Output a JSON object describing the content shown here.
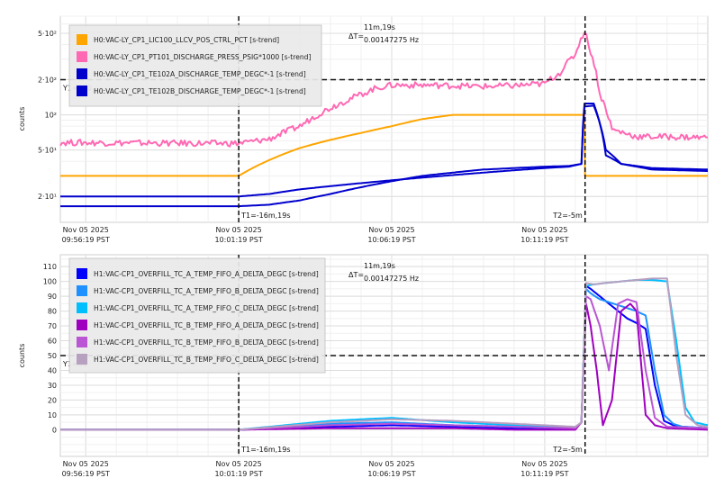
{
  "chart_data": [
    {
      "type": "line",
      "ylabel": "counts",
      "yscale": "log",
      "ylim": [
        12,
        700
      ],
      "yticks": [
        {
          "value": 20,
          "label": "2·10¹"
        },
        {
          "value": 50,
          "label": "5·10¹"
        },
        {
          "value": 100,
          "label": "10²"
        },
        {
          "value": 200,
          "label": "2·10²"
        },
        {
          "value": 500,
          "label": "5·10²"
        }
      ],
      "xticks": [
        {
          "minutes": 0,
          "line1": "Nov 05 2025",
          "line2": "09:56:19 PST"
        },
        {
          "minutes": 5,
          "line1": "Nov 05 2025",
          "line2": "10:01:19 PST"
        },
        {
          "minutes": 10,
          "line1": "Nov 05 2025",
          "line2": "10:06:19 PST"
        },
        {
          "minutes": 15,
          "line1": "Nov 05 2025",
          "line2": "10:11:19 PST"
        }
      ],
      "xrange_minutes": [
        -0.83,
        20.33
      ],
      "grid": true,
      "legend_position": "top-left",
      "cursors": {
        "t1_minutes": 5,
        "t1_label": "T1=-16m,19s",
        "t2_minutes": 16.32,
        "t2_label": "T2=-5m",
        "dt_label": "ΔT=",
        "dt_value": "11m,19s",
        "dt_freq": "0.00147275 Hz",
        "y1_value": 200,
        "y1_label": "Y1=200"
      },
      "series": [
        {
          "name": "H0:VAC-LY_CP1_LIC100_LLCV_POS_CTRL_PCT [s-trend]",
          "color": "#ffa500",
          "x": [
            -0.83,
            5,
            6,
            7,
            8,
            9,
            10,
            11,
            12,
            13,
            14,
            15,
            16.3,
            16.32,
            18,
            20.33
          ],
          "y": [
            30,
            30,
            41,
            52,
            61,
            70,
            80,
            92,
            100,
            100,
            100,
            100,
            100,
            30,
            30,
            30
          ]
        },
        {
          "name": "H0:VAC-LY_CP1_PT101_DISCHARGE_PRESS_PSIG*1000 [s-trend]",
          "color": "#ff69b4",
          "x": [
            -0.83,
            4,
            5,
            6,
            7,
            8,
            9,
            9.5,
            10,
            11,
            12,
            13,
            14,
            15,
            15.5,
            16,
            16.3,
            16.5,
            16.8,
            17.2,
            18,
            19,
            20.33
          ],
          "y": [
            58,
            57,
            57,
            62,
            80,
            115,
            150,
            170,
            180,
            180,
            178,
            175,
            178,
            185,
            230,
            330,
            520,
            350,
            150,
            75,
            65,
            65,
            64
          ]
        },
        {
          "name": "H0:VAC-LY_CP1_TE102A_DISCHARGE_TEMP_DEGC*-1 [s-trend]",
          "color": "#0000cd",
          "x": [
            -0.83,
            5,
            6,
            7,
            8,
            9,
            10,
            11,
            12,
            13,
            14,
            15,
            15.8,
            16.2,
            16.3,
            16.32,
            16.6,
            17,
            17.5,
            18.5,
            20.33
          ],
          "y": [
            20,
            20,
            21,
            23,
            24.5,
            26,
            27.5,
            29,
            30.5,
            32,
            33.5,
            35,
            36,
            38,
            125,
            125,
            125,
            45,
            38,
            34,
            33
          ]
        },
        {
          "name": "H0:VAC-LY_CP1_TE102B_DISCHARGE_TEMP_DEGC*-1 [s-trend]",
          "color": "#0000cd",
          "x": [
            -0.83,
            5,
            6,
            7,
            8,
            9,
            10,
            11,
            12,
            13,
            14,
            15,
            15.8,
            16.2,
            16.3,
            16.32,
            16.6,
            17,
            17.5,
            18.5,
            20.33
          ],
          "y": [
            16.5,
            16.5,
            17,
            18.5,
            21,
            24,
            27,
            30,
            32,
            34,
            35,
            36,
            36.5,
            38,
            118,
            118,
            120,
            50,
            38,
            35,
            34
          ]
        }
      ]
    },
    {
      "type": "line",
      "ylabel": "counts",
      "ylim": [
        -18,
        118
      ],
      "yticks": [
        0,
        10,
        20,
        30,
        40,
        50,
        60,
        70,
        80,
        90,
        100,
        110
      ],
      "xticks": [
        {
          "minutes": 0,
          "line1": "Nov 05 2025",
          "line2": "09:56:19 PST"
        },
        {
          "minutes": 5,
          "line1": "Nov 05 2025",
          "line2": "10:01:19 PST"
        },
        {
          "minutes": 10,
          "line1": "Nov 05 2025",
          "line2": "10:06:19 PST"
        },
        {
          "minutes": 15,
          "line1": "Nov 05 2025",
          "line2": "10:11:19 PST"
        }
      ],
      "xrange_minutes": [
        -0.83,
        20.33
      ],
      "grid": true,
      "legend_position": "top-left",
      "cursors": {
        "t1_minutes": 5,
        "t1_label": "T1=-16m,19s",
        "t2_minutes": 16.32,
        "t2_label": "T2=-5m",
        "dt_label": "ΔT=",
        "dt_value": "11m,19s",
        "dt_freq": "0.00147275 Hz",
        "y1_value": 50,
        "y1_label": "Y1=50"
      },
      "series": [
        {
          "name": "H1:VAC-CP1_OVERFILL_TC_A_TEMP_FIFO_A_DELTA_DEGC [s-trend]",
          "color": "#0000ff",
          "x": [
            -0.83,
            5,
            8,
            10,
            12,
            14,
            16,
            16.2,
            16.35,
            16.5,
            16.8,
            17.1,
            17.4,
            17.7,
            18,
            18.3,
            18.6,
            18.9,
            19.2,
            19.5,
            20.33
          ],
          "y": [
            0,
            0,
            2,
            3,
            2,
            1,
            1,
            5,
            97,
            95,
            90,
            85,
            80,
            75,
            72,
            68,
            30,
            6,
            3,
            2,
            1
          ]
        },
        {
          "name": "H1:VAC-CP1_OVERFILL_TC_A_TEMP_FIFO_B_DELTA_DEGC [s-trend]",
          "color": "#1e90ff",
          "x": [
            -0.83,
            5,
            8,
            10,
            12,
            14,
            16,
            16.2,
            16.35,
            16.5,
            16.8,
            17.1,
            17.4,
            17.7,
            18,
            18.3,
            18.6,
            18.9,
            19.2,
            19.5,
            20.33
          ],
          "y": [
            0,
            0,
            4,
            5,
            3,
            2,
            1,
            5,
            95,
            92,
            88,
            86,
            84,
            82,
            80,
            77,
            40,
            10,
            4,
            2,
            1
          ]
        },
        {
          "name": "H1:VAC-CP1_OVERFILL_TC_A_TEMP_FIFO_C_DELTA_DEGC [s-trend]",
          "color": "#00bfff",
          "x": [
            -0.83,
            5,
            8,
            10,
            12,
            14,
            16,
            16.2,
            16.35,
            16.6,
            17,
            17.5,
            18,
            18.5,
            19,
            19.3,
            19.6,
            19.9,
            20.33
          ],
          "y": [
            0,
            0,
            6,
            8,
            5,
            3,
            1,
            5,
            97,
            98,
            99,
            100,
            101,
            101,
            100,
            60,
            15,
            5,
            3
          ]
        },
        {
          "name": "H1:VAC-CP1_OVERFILL_TC_B_TEMP_FIFO_A_DELTA_DEGC [s-trend]",
          "color": "#a000c0",
          "x": [
            -0.83,
            5,
            8,
            10,
            12,
            14,
            16,
            16.2,
            16.35,
            16.5,
            16.7,
            16.9,
            17.2,
            17.5,
            17.8,
            18,
            18.3,
            18.6,
            19,
            20.33
          ],
          "y": [
            0,
            0,
            1,
            1,
            1,
            0,
            0,
            5,
            85,
            70,
            40,
            3,
            20,
            80,
            85,
            80,
            10,
            3,
            1,
            0
          ]
        },
        {
          "name": "H1:VAC-CP1_OVERFILL_TC_B_TEMP_FIFO_B_DELTA_DEGC [s-trend]",
          "color": "#ba55d3",
          "x": [
            -0.83,
            5,
            8,
            10,
            12,
            14,
            16,
            16.2,
            16.35,
            16.5,
            16.8,
            17.1,
            17.4,
            17.7,
            18,
            18.3,
            18.6,
            19,
            20.33
          ],
          "y": [
            0,
            0,
            3,
            4,
            3,
            2,
            1,
            5,
            90,
            88,
            70,
            40,
            85,
            88,
            86,
            40,
            8,
            2,
            1
          ]
        },
        {
          "name": "H1:VAC-CP1_OVERFILL_TC_B_TEMP_FIFO_C_DELTA_DEGC [s-trend]",
          "color": "#b8a0c0",
          "x": [
            -0.83,
            5,
            8,
            10,
            12,
            14,
            16,
            16.2,
            16.35,
            16.6,
            17,
            17.5,
            18,
            18.5,
            19,
            19.3,
            19.6,
            20,
            20.33
          ],
          "y": [
            0,
            0,
            5,
            7,
            6,
            4,
            2,
            5,
            99,
            98,
            99,
            100,
            101,
            102,
            102,
            50,
            10,
            3,
            2
          ]
        }
      ]
    }
  ]
}
